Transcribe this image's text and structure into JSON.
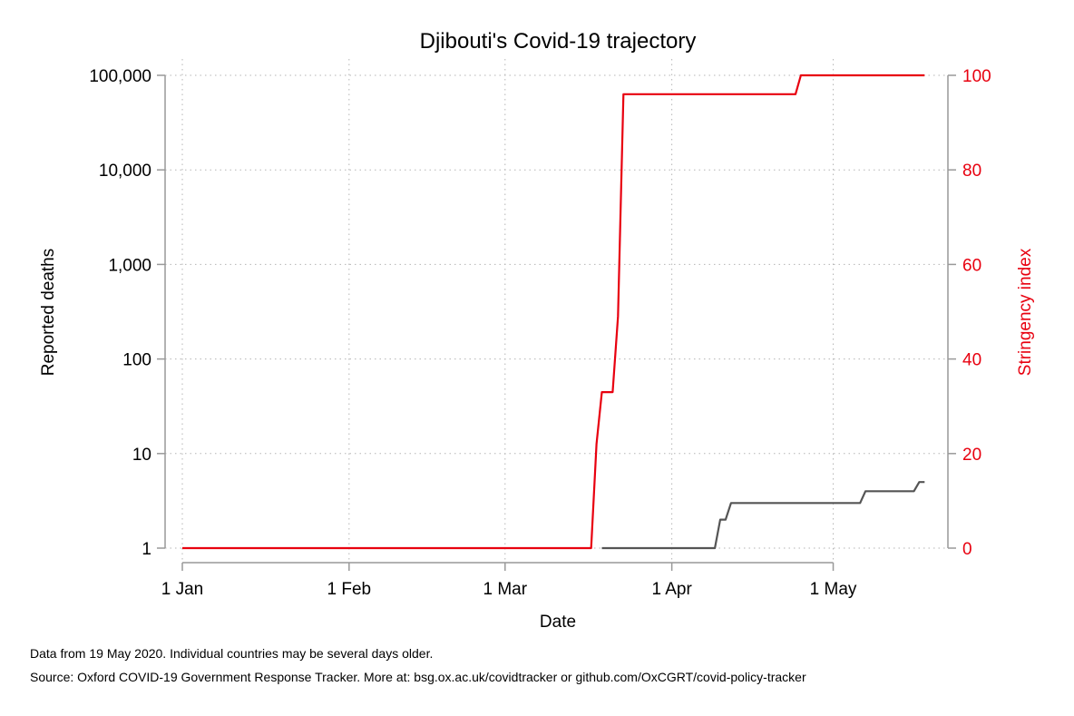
{
  "chart_data": {
    "type": "line",
    "title": "Djibouti's Covid-19 trajectory",
    "xlabel": "Date",
    "ylabel_left": "Reported deaths",
    "ylabel_right": "Stringency index",
    "x_ticks": [
      "1 Jan",
      "1 Feb",
      "1 Mar",
      "1 Apr",
      "1 May"
    ],
    "x_range": [
      "2020-01-01",
      "2020-05-19"
    ],
    "y_left": {
      "scale": "log",
      "range": [
        1,
        100000
      ],
      "ticks": [
        1,
        10,
        100,
        1000,
        10000,
        100000
      ],
      "tick_labels": [
        "1",
        "10",
        "100",
        "1,000",
        "10,000",
        "100,000"
      ]
    },
    "y_right": {
      "range": [
        0,
        100
      ],
      "ticks": [
        0,
        20,
        40,
        60,
        80,
        100
      ],
      "tick_labels": [
        "0",
        "20",
        "40",
        "60",
        "80",
        "100"
      ]
    },
    "grid": true,
    "colors": {
      "stringency": "#e8000f",
      "deaths": "#555555",
      "axis": "#999999",
      "grid": "#b5b5b5"
    },
    "series": [
      {
        "axis": "right",
        "color": "#e8000f",
        "points": [
          [
            "2020-01-01",
            0
          ],
          [
            "2020-03-17",
            0
          ],
          [
            "2020-03-18",
            22
          ],
          [
            "2020-03-19",
            33
          ],
          [
            "2020-03-21",
            33
          ],
          [
            "2020-03-22",
            49
          ],
          [
            "2020-03-23",
            96
          ],
          [
            "2020-04-24",
            96
          ],
          [
            "2020-04-25",
            100
          ],
          [
            "2020-05-18",
            100
          ]
        ]
      },
      {
        "axis": "left",
        "color": "#555555",
        "points": [
          [
            "2020-03-19",
            1
          ],
          [
            "2020-04-09",
            1
          ],
          [
            "2020-04-10",
            2
          ],
          [
            "2020-04-11",
            2
          ],
          [
            "2020-04-12",
            3
          ],
          [
            "2020-05-06",
            3
          ],
          [
            "2020-05-07",
            4
          ],
          [
            "2020-05-16",
            4
          ],
          [
            "2020-05-17",
            5
          ],
          [
            "2020-05-18",
            5
          ]
        ]
      }
    ]
  },
  "footnotes": {
    "line1": "Data from 19 May 2020. Individual countries may be several days older.",
    "line2": "Source: Oxford COVID-19 Government Response Tracker. More at: bsg.ox.ac.uk/covidtracker or github.com/OxCGRT/covid-policy-tracker"
  }
}
